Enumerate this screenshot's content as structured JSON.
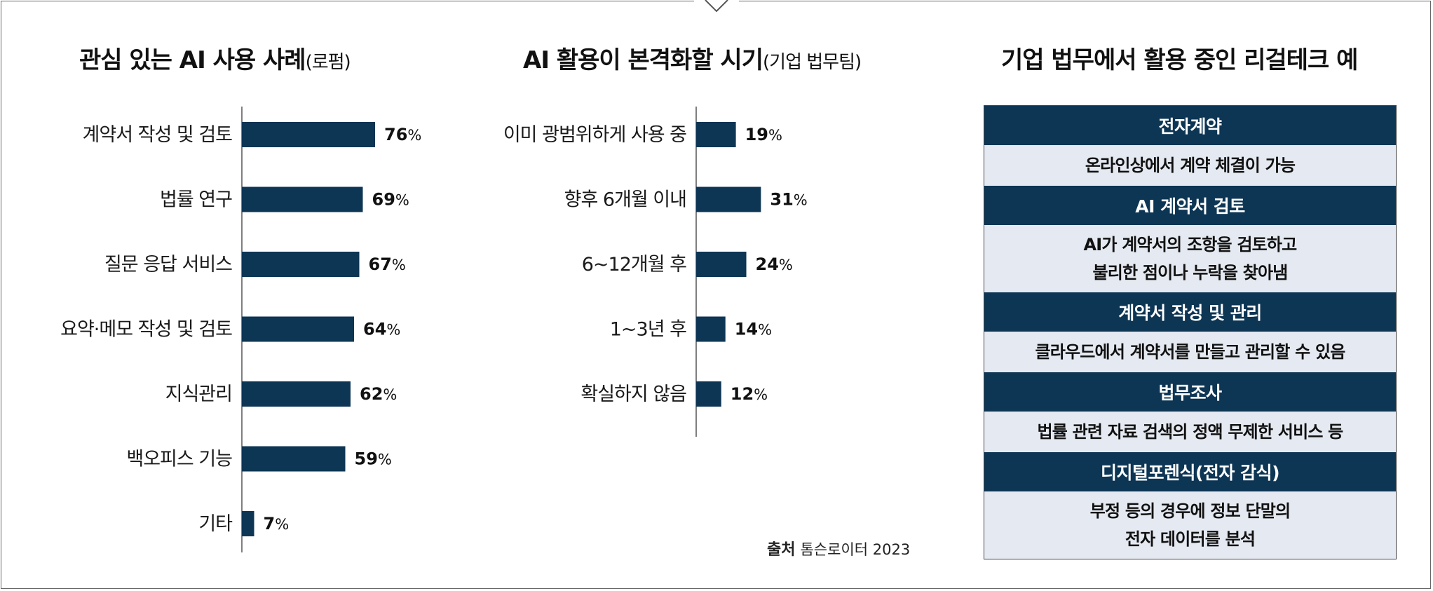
{
  "chart_data": [
    {
      "type": "bar",
      "orientation": "horizontal",
      "title": "관심 있는 AI 사용 사례",
      "subtitle": "(로펌)",
      "categories": [
        "계약서 작성 및 검토",
        "법률 연구",
        "질문 응답 서비스",
        "요약·메모 작성 및 검토",
        "지식관리",
        "백오피스 기능",
        "기타"
      ],
      "values": [
        76,
        69,
        67,
        64,
        62,
        59,
        7
      ],
      "value_suffix": "%",
      "color": "#0d3554",
      "xlim": [
        0,
        100
      ],
      "grid": false
    },
    {
      "type": "bar",
      "orientation": "horizontal",
      "title": "AI 활용이 본격화할 시기",
      "subtitle": "(기업 법무팀)",
      "categories": [
        "이미 광범위하게 사용 중",
        "향후 6개월 이내",
        "6~12개월 후",
        "1~3년 후",
        "확실하지 않음"
      ],
      "values": [
        19,
        31,
        24,
        14,
        12
      ],
      "value_suffix": "%",
      "color": "#0d3554",
      "xlim": [
        0,
        100
      ],
      "grid": false
    }
  ],
  "source": {
    "label": "출처",
    "text": "톰슨로이터 2023"
  },
  "legaltech": {
    "title": "기업 법무에서 활용 중인 리걸테크 예",
    "items": [
      {
        "name": "전자계약",
        "desc": "온라인상에서 계약 체결이 가능"
      },
      {
        "name": "AI 계약서 검토",
        "desc": "AI가 계약서의 조항을 검토하고\n불리한 점이나 누락을 찾아냄"
      },
      {
        "name": "계약서 작성 및 관리",
        "desc": "클라우드에서 계약서를 만들고 관리할 수 있음"
      },
      {
        "name": "법무조사",
        "desc": "법률 관련 자료 검색의 정액 무제한 서비스 등"
      },
      {
        "name": "디지털포렌식(전자 감식)",
        "desc": "부정 등의 경우에 정보 단말의\n전자 데이터를 분석"
      }
    ]
  }
}
